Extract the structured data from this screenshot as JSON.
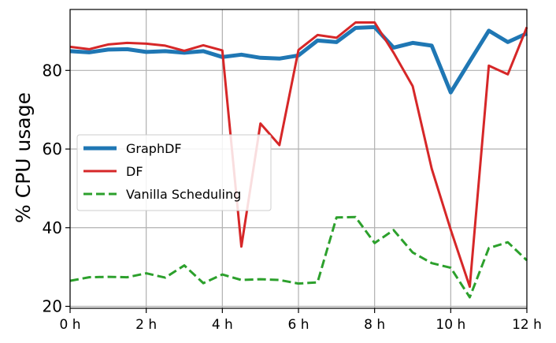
{
  "chart_data": {
    "type": "line",
    "title": "",
    "xlabel": "",
    "ylabel": "% CPU usage",
    "xlim": [
      0,
      12
    ],
    "ylim": [
      19.5,
      95.5
    ],
    "grid": true,
    "legend_position": "center-left",
    "x_ticks": [
      {
        "value": 0,
        "label": "0 h"
      },
      {
        "value": 2,
        "label": "2 h"
      },
      {
        "value": 4,
        "label": "4 h"
      },
      {
        "value": 6,
        "label": "6 h"
      },
      {
        "value": 8,
        "label": "8 h"
      },
      {
        "value": 10,
        "label": "10 h"
      },
      {
        "value": 12,
        "label": "12 h"
      }
    ],
    "y_ticks": [
      {
        "value": 20,
        "label": "20"
      },
      {
        "value": 40,
        "label": "40"
      },
      {
        "value": 60,
        "label": "60"
      },
      {
        "value": 80,
        "label": "80"
      }
    ],
    "x": [
      0,
      0.5,
      1,
      1.5,
      2,
      2.5,
      3,
      3.5,
      4,
      4.5,
      5,
      5.5,
      6,
      6.5,
      7,
      7.5,
      8,
      8.5,
      9,
      9.5,
      10,
      10.5,
      11,
      11.5,
      12
    ],
    "series": [
      {
        "name": "GraphDF",
        "color": "#1f77b4",
        "style": "solid",
        "values": [
          84.9,
          84.6,
          85.3,
          85.4,
          84.7,
          84.9,
          84.5,
          84.9,
          83.4,
          84.0,
          83.2,
          83.0,
          83.8,
          87.6,
          87.2,
          90.8,
          91.0,
          85.8,
          87.0,
          86.3,
          74.4,
          82.3,
          90.1,
          87.2,
          89.4
        ]
      },
      {
        "name": "DF",
        "color": "#d62728",
        "style": "solid",
        "values": [
          86.0,
          85.4,
          86.6,
          87.0,
          86.8,
          86.3,
          85.0,
          86.4,
          85.1,
          35.2,
          66.5,
          61.0,
          85.2,
          89.0,
          88.3,
          92.2,
          92.2,
          84.5,
          76.0,
          55.0,
          39.5,
          25.0,
          81.2,
          79.0,
          91.0
        ]
      },
      {
        "name": "Vanilla Scheduling",
        "color": "#2ca02c",
        "style": "dashed",
        "values": [
          26.5,
          27.4,
          27.5,
          27.4,
          28.4,
          27.3,
          30.4,
          25.9,
          28.1,
          26.7,
          26.9,
          26.7,
          25.8,
          26.1,
          42.6,
          42.7,
          36.1,
          39.4,
          33.7,
          31.0,
          29.8,
          22.3,
          34.8,
          36.3,
          31.7
        ]
      }
    ]
  }
}
